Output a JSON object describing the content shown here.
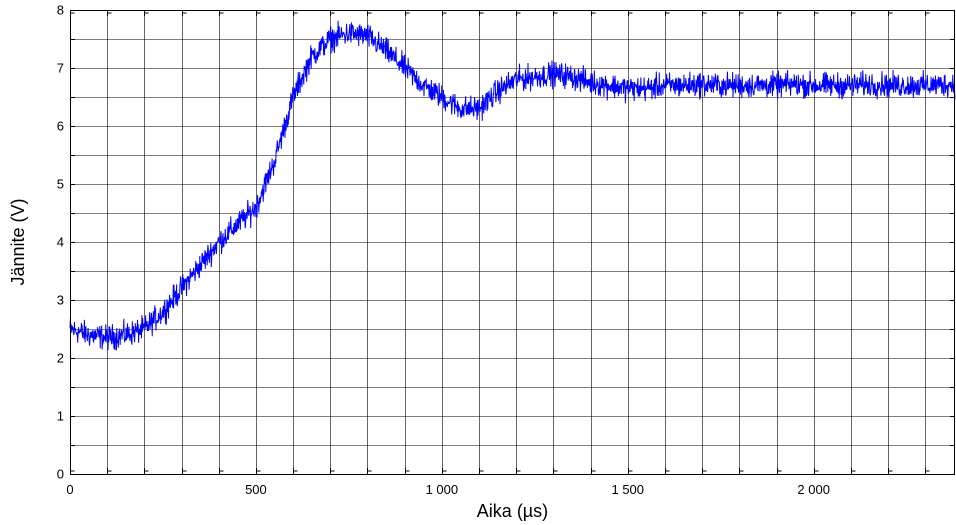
{
  "chart_data": {
    "type": "line",
    "title": "",
    "xlabel": "Aika (µs)",
    "ylabel": "Jännite (V)",
    "xlim": [
      0,
      2380
    ],
    "ylim": [
      0,
      8
    ],
    "grid": true,
    "x_ticks": [
      0,
      500,
      1000,
      1500,
      2000
    ],
    "x_tick_labels": [
      "0",
      "500",
      "1 000",
      "1 500",
      "2 000"
    ],
    "y_ticks": [
      0,
      1,
      2,
      3,
      4,
      5,
      6,
      7,
      8
    ],
    "y_tick_labels": [
      "0",
      "1",
      "2",
      "3",
      "4",
      "5",
      "6",
      "7",
      "8"
    ],
    "series": [
      {
        "color": "#0000ff",
        "noise_amplitude": 0.15,
        "x": [
          0,
          50,
          100,
          150,
          200,
          250,
          300,
          350,
          400,
          450,
          500,
          550,
          600,
          650,
          700,
          750,
          800,
          850,
          900,
          950,
          1000,
          1050,
          1100,
          1150,
          1200,
          1250,
          1300,
          1350,
          1400,
          1450,
          1500,
          1550,
          1600,
          1650,
          1700,
          1750,
          1800,
          1850,
          1900,
          1950,
          2000,
          2050,
          2100,
          2150,
          2200,
          2250,
          2300,
          2380
        ],
        "y": [
          2.5,
          2.4,
          2.35,
          2.4,
          2.5,
          2.8,
          3.2,
          3.6,
          4.0,
          4.3,
          4.6,
          5.4,
          6.5,
          7.2,
          7.5,
          7.6,
          7.55,
          7.3,
          7.0,
          6.7,
          6.5,
          6.3,
          6.3,
          6.6,
          6.8,
          6.85,
          6.9,
          6.85,
          6.75,
          6.7,
          6.65,
          6.65,
          6.7,
          6.7,
          6.72,
          6.7,
          6.7,
          6.7,
          6.7,
          6.72,
          6.7,
          6.7,
          6.7,
          6.72,
          6.7,
          6.7,
          6.7,
          6.72
        ]
      }
    ]
  }
}
